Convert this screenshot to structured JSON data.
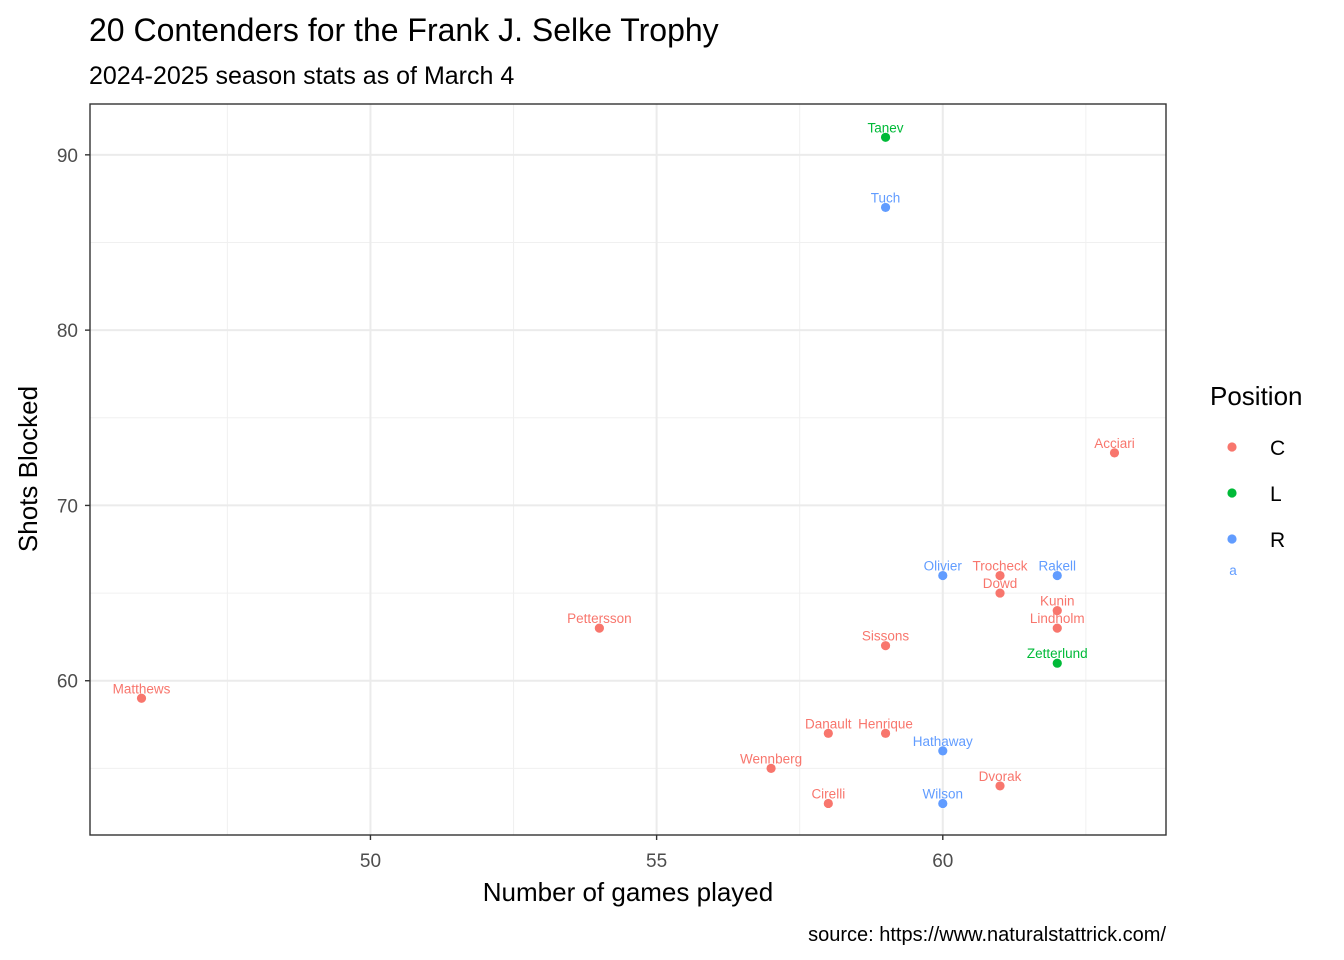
{
  "chart_data": {
    "type": "scatter",
    "title": "20 Contenders for the Frank J. Selke Trophy",
    "subtitle": "2024-2025 season stats as of March 4",
    "xlabel": "Number of games played",
    "ylabel": "Shots Blocked",
    "caption": "source: https://www.naturalstattrick.com/",
    "xlim": [
      45.1,
      63.9
    ],
    "ylim": [
      51.2,
      92.9
    ],
    "x_ticks": [
      50,
      55,
      60
    ],
    "y_ticks": [
      60,
      70,
      80,
      90
    ],
    "grid": true,
    "legend": {
      "title": "Position",
      "placement": "right",
      "items": [
        {
          "label": "C",
          "color": "#F8766D"
        },
        {
          "label": "L",
          "color": "#00BA38"
        },
        {
          "label": "R",
          "color": "#619CFF"
        }
      ],
      "key_text": "a"
    },
    "points": [
      {
        "name": "Tanev",
        "x": 59,
        "y": 91,
        "position": "L"
      },
      {
        "name": "Tuch",
        "x": 59,
        "y": 87,
        "position": "R"
      },
      {
        "name": "Acciari",
        "x": 63,
        "y": 73,
        "position": "C"
      },
      {
        "name": "Olivier",
        "x": 60,
        "y": 66,
        "position": "R"
      },
      {
        "name": "Trocheck",
        "x": 61,
        "y": 66,
        "position": "C"
      },
      {
        "name": "Rakell",
        "x": 62,
        "y": 66,
        "position": "R"
      },
      {
        "name": "Dowd",
        "x": 61,
        "y": 65,
        "position": "C"
      },
      {
        "name": "Kunin",
        "x": 62,
        "y": 64,
        "position": "C"
      },
      {
        "name": "Lindholm",
        "x": 62,
        "y": 63,
        "position": "C"
      },
      {
        "name": "Pettersson",
        "x": 54,
        "y": 63,
        "position": "C"
      },
      {
        "name": "Sissons",
        "x": 59,
        "y": 62,
        "position": "C"
      },
      {
        "name": "Zetterlund",
        "x": 62,
        "y": 61,
        "position": "L"
      },
      {
        "name": "Matthews",
        "x": 46,
        "y": 59,
        "position": "C"
      },
      {
        "name": "Danault",
        "x": 58,
        "y": 57,
        "position": "C"
      },
      {
        "name": "Henrique",
        "x": 59,
        "y": 57,
        "position": "C"
      },
      {
        "name": "Hathaway",
        "x": 60,
        "y": 56,
        "position": "R"
      },
      {
        "name": "Wennberg",
        "x": 57,
        "y": 55,
        "position": "C"
      },
      {
        "name": "Dvorak",
        "x": 61,
        "y": 54,
        "position": "C"
      },
      {
        "name": "Cirelli",
        "x": 58,
        "y": 53,
        "position": "C"
      },
      {
        "name": "Wilson",
        "x": 60,
        "y": 53,
        "position": "R"
      }
    ]
  }
}
